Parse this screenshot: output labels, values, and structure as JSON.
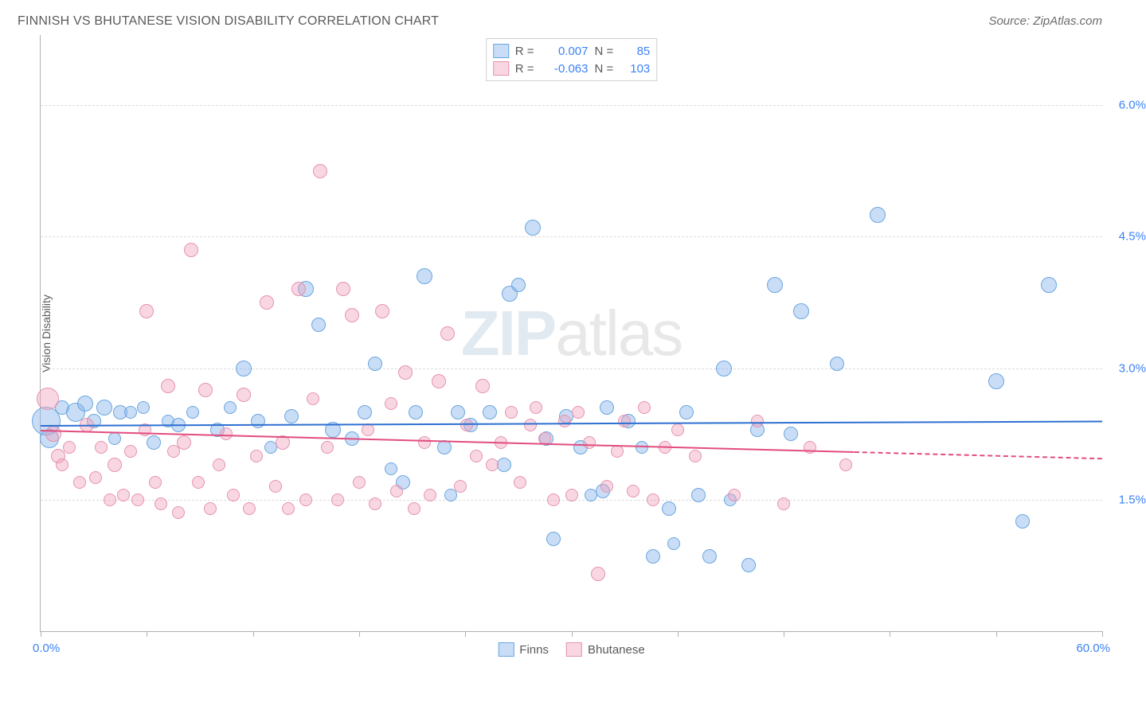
{
  "header": {
    "title": "FINNISH VS BHUTANESE VISION DISABILITY CORRELATION CHART",
    "source": "Source: ZipAtlas.com"
  },
  "watermark": {
    "bold": "ZIP",
    "thin": "atlas"
  },
  "chart": {
    "type": "scatter",
    "ylabel": "Vision Disability",
    "background_color": "#ffffff",
    "grid_color": "#dcdcdc",
    "axis_color": "#b0b0b0",
    "label_fontcolor": "#5a5a5a",
    "value_fontcolor": "#3b82f6",
    "xlim": [
      0,
      60
    ],
    "ylim": [
      0,
      6.8
    ],
    "xtick_positions": [
      0,
      6,
      12,
      18,
      24,
      30,
      36,
      42,
      48,
      54,
      60
    ],
    "xlabel_min": "0.0%",
    "xlabel_max": "60.0%",
    "ytick_positions": [
      1.5,
      3.0,
      4.5,
      6.0
    ],
    "ytick_labels": [
      "1.5%",
      "3.0%",
      "4.5%",
      "6.0%"
    ],
    "series": [
      {
        "name": "Finns",
        "fill_color": "rgba(135,180,235,0.45)",
        "stroke_color": "#6aa7e0",
        "trend_color": "#2e6fd1",
        "R": "0.007",
        "N": "85",
        "trend": {
          "x0": 0,
          "y0": 2.35,
          "x1": 60,
          "y1": 2.4,
          "solid_until_x": 60
        },
        "points": [
          {
            "x": 0.3,
            "y": 2.4,
            "r": 18
          },
          {
            "x": 0.5,
            "y": 2.2,
            "r": 12
          },
          {
            "x": 1.2,
            "y": 2.55,
            "r": 9
          },
          {
            "x": 2.0,
            "y": 2.5,
            "r": 12
          },
          {
            "x": 2.5,
            "y": 2.6,
            "r": 10
          },
          {
            "x": 3.0,
            "y": 2.4,
            "r": 9
          },
          {
            "x": 3.6,
            "y": 2.55,
            "r": 10
          },
          {
            "x": 4.5,
            "y": 2.5,
            "r": 9
          },
          {
            "x": 4.2,
            "y": 2.2,
            "r": 8
          },
          {
            "x": 5.1,
            "y": 2.5,
            "r": 8
          },
          {
            "x": 5.8,
            "y": 2.55,
            "r": 8
          },
          {
            "x": 6.4,
            "y": 2.15,
            "r": 9
          },
          {
            "x": 7.2,
            "y": 2.4,
            "r": 8
          },
          {
            "x": 7.8,
            "y": 2.35,
            "r": 9
          },
          {
            "x": 8.6,
            "y": 2.5,
            "r": 8
          },
          {
            "x": 10.0,
            "y": 2.3,
            "r": 9
          },
          {
            "x": 10.7,
            "y": 2.55,
            "r": 8
          },
          {
            "x": 11.5,
            "y": 3.0,
            "r": 10
          },
          {
            "x": 12.3,
            "y": 2.4,
            "r": 9
          },
          {
            "x": 13.0,
            "y": 2.1,
            "r": 8
          },
          {
            "x": 14.2,
            "y": 2.45,
            "r": 9
          },
          {
            "x": 15.0,
            "y": 3.9,
            "r": 10
          },
          {
            "x": 15.7,
            "y": 3.5,
            "r": 9
          },
          {
            "x": 16.5,
            "y": 2.3,
            "r": 10
          },
          {
            "x": 17.6,
            "y": 2.2,
            "r": 9
          },
          {
            "x": 18.3,
            "y": 2.5,
            "r": 9
          },
          {
            "x": 18.9,
            "y": 3.05,
            "r": 9
          },
          {
            "x": 19.8,
            "y": 1.85,
            "r": 8
          },
          {
            "x": 20.5,
            "y": 1.7,
            "r": 9
          },
          {
            "x": 21.2,
            "y": 2.5,
            "r": 9
          },
          {
            "x": 21.7,
            "y": 4.05,
            "r": 10
          },
          {
            "x": 22.8,
            "y": 2.1,
            "r": 9
          },
          {
            "x": 23.6,
            "y": 2.5,
            "r": 9
          },
          {
            "x": 23.2,
            "y": 1.55,
            "r": 8
          },
          {
            "x": 24.3,
            "y": 2.35,
            "r": 9
          },
          {
            "x": 25.4,
            "y": 2.5,
            "r": 9
          },
          {
            "x": 26.2,
            "y": 1.9,
            "r": 9
          },
          {
            "x": 26.5,
            "y": 3.85,
            "r": 10
          },
          {
            "x": 27.0,
            "y": 3.95,
            "r": 9
          },
          {
            "x": 27.8,
            "y": 4.6,
            "r": 10
          },
          {
            "x": 28.6,
            "y": 2.2,
            "r": 9
          },
          {
            "x": 29.0,
            "y": 1.05,
            "r": 9
          },
          {
            "x": 29.7,
            "y": 2.45,
            "r": 9
          },
          {
            "x": 30.5,
            "y": 2.1,
            "r": 9
          },
          {
            "x": 31.8,
            "y": 1.6,
            "r": 9
          },
          {
            "x": 32.0,
            "y": 2.55,
            "r": 9
          },
          {
            "x": 31.1,
            "y": 1.55,
            "r": 8
          },
          {
            "x": 33.2,
            "y": 2.4,
            "r": 9
          },
          {
            "x": 34.0,
            "y": 2.1,
            "r": 8
          },
          {
            "x": 34.6,
            "y": 0.85,
            "r": 9
          },
          {
            "x": 35.5,
            "y": 1.4,
            "r": 9
          },
          {
            "x": 35.8,
            "y": 1.0,
            "r": 8
          },
          {
            "x": 36.5,
            "y": 2.5,
            "r": 9
          },
          {
            "x": 37.2,
            "y": 1.55,
            "r": 9
          },
          {
            "x": 37.8,
            "y": 0.85,
            "r": 9
          },
          {
            "x": 38.6,
            "y": 3.0,
            "r": 10
          },
          {
            "x": 39.0,
            "y": 1.5,
            "r": 8
          },
          {
            "x": 40.0,
            "y": 0.75,
            "r": 9
          },
          {
            "x": 40.5,
            "y": 2.3,
            "r": 9
          },
          {
            "x": 41.5,
            "y": 3.95,
            "r": 10
          },
          {
            "x": 42.4,
            "y": 2.25,
            "r": 9
          },
          {
            "x": 43.0,
            "y": 3.65,
            "r": 10
          },
          {
            "x": 45.0,
            "y": 3.05,
            "r": 9
          },
          {
            "x": 47.3,
            "y": 4.75,
            "r": 10
          },
          {
            "x": 54.0,
            "y": 2.85,
            "r": 10
          },
          {
            "x": 55.5,
            "y": 1.25,
            "r": 9
          },
          {
            "x": 57.0,
            "y": 3.95,
            "r": 10
          }
        ]
      },
      {
        "name": "Bhutanese",
        "fill_color": "rgba(240,160,185,0.42)",
        "stroke_color": "#e593af",
        "trend_color": "#e24d7e",
        "R": "-0.063",
        "N": "103",
        "trend": {
          "x0": 0,
          "y0": 2.3,
          "x1": 60,
          "y1": 1.98,
          "solid_until_x": 46
        },
        "points": [
          {
            "x": 0.4,
            "y": 2.65,
            "r": 14
          },
          {
            "x": 0.7,
            "y": 2.25,
            "r": 10
          },
          {
            "x": 1.0,
            "y": 2.0,
            "r": 9
          },
          {
            "x": 1.6,
            "y": 2.1,
            "r": 8
          },
          {
            "x": 1.2,
            "y": 1.9,
            "r": 8
          },
          {
            "x": 2.2,
            "y": 1.7,
            "r": 8
          },
          {
            "x": 2.6,
            "y": 2.35,
            "r": 9
          },
          {
            "x": 3.1,
            "y": 1.75,
            "r": 8
          },
          {
            "x": 3.4,
            "y": 2.1,
            "r": 8
          },
          {
            "x": 3.9,
            "y": 1.5,
            "r": 8
          },
          {
            "x": 4.2,
            "y": 1.9,
            "r": 9
          },
          {
            "x": 4.7,
            "y": 1.55,
            "r": 8
          },
          {
            "x": 5.1,
            "y": 2.05,
            "r": 8
          },
          {
            "x": 5.5,
            "y": 1.5,
            "r": 8
          },
          {
            "x": 5.9,
            "y": 2.3,
            "r": 8
          },
          {
            "x": 6.0,
            "y": 3.65,
            "r": 9
          },
          {
            "x": 6.5,
            "y": 1.7,
            "r": 8
          },
          {
            "x": 6.8,
            "y": 1.45,
            "r": 8
          },
          {
            "x": 7.2,
            "y": 2.8,
            "r": 9
          },
          {
            "x": 7.5,
            "y": 2.05,
            "r": 8
          },
          {
            "x": 7.8,
            "y": 1.35,
            "r": 8
          },
          {
            "x": 8.1,
            "y": 2.15,
            "r": 9
          },
          {
            "x": 8.5,
            "y": 4.35,
            "r": 9
          },
          {
            "x": 8.9,
            "y": 1.7,
            "r": 8
          },
          {
            "x": 9.3,
            "y": 2.75,
            "r": 9
          },
          {
            "x": 9.6,
            "y": 1.4,
            "r": 8
          },
          {
            "x": 10.1,
            "y": 1.9,
            "r": 8
          },
          {
            "x": 10.5,
            "y": 2.25,
            "r": 8
          },
          {
            "x": 10.9,
            "y": 1.55,
            "r": 8
          },
          {
            "x": 11.5,
            "y": 2.7,
            "r": 9
          },
          {
            "x": 11.8,
            "y": 1.4,
            "r": 8
          },
          {
            "x": 12.2,
            "y": 2.0,
            "r": 8
          },
          {
            "x": 12.8,
            "y": 3.75,
            "r": 9
          },
          {
            "x": 13.3,
            "y": 1.65,
            "r": 8
          },
          {
            "x": 13.7,
            "y": 2.15,
            "r": 9
          },
          {
            "x": 14.0,
            "y": 1.4,
            "r": 8
          },
          {
            "x": 14.6,
            "y": 3.9,
            "r": 9
          },
          {
            "x": 15.0,
            "y": 1.5,
            "r": 8
          },
          {
            "x": 15.4,
            "y": 2.65,
            "r": 8
          },
          {
            "x": 15.8,
            "y": 5.25,
            "r": 9
          },
          {
            "x": 16.2,
            "y": 2.1,
            "r": 8
          },
          {
            "x": 16.8,
            "y": 1.5,
            "r": 8
          },
          {
            "x": 17.1,
            "y": 3.9,
            "r": 9
          },
          {
            "x": 17.6,
            "y": 3.6,
            "r": 9
          },
          {
            "x": 18.0,
            "y": 1.7,
            "r": 8
          },
          {
            "x": 18.5,
            "y": 2.3,
            "r": 8
          },
          {
            "x": 18.9,
            "y": 1.45,
            "r": 8
          },
          {
            "x": 19.3,
            "y": 3.65,
            "r": 9
          },
          {
            "x": 19.8,
            "y": 2.6,
            "r": 8
          },
          {
            "x": 20.1,
            "y": 1.6,
            "r": 8
          },
          {
            "x": 20.6,
            "y": 2.95,
            "r": 9
          },
          {
            "x": 21.1,
            "y": 1.4,
            "r": 8
          },
          {
            "x": 21.7,
            "y": 2.15,
            "r": 8
          },
          {
            "x": 22.0,
            "y": 1.55,
            "r": 8
          },
          {
            "x": 22.5,
            "y": 2.85,
            "r": 9
          },
          {
            "x": 23.0,
            "y": 3.4,
            "r": 9
          },
          {
            "x": 23.7,
            "y": 1.65,
            "r": 8
          },
          {
            "x": 24.1,
            "y": 2.35,
            "r": 8
          },
          {
            "x": 24.6,
            "y": 2.0,
            "r": 8
          },
          {
            "x": 25.0,
            "y": 2.8,
            "r": 9
          },
          {
            "x": 25.5,
            "y": 1.9,
            "r": 8
          },
          {
            "x": 26.0,
            "y": 2.15,
            "r": 8
          },
          {
            "x": 26.6,
            "y": 2.5,
            "r": 8
          },
          {
            "x": 27.1,
            "y": 1.7,
            "r": 8
          },
          {
            "x": 27.7,
            "y": 2.35,
            "r": 8
          },
          {
            "x": 28.0,
            "y": 2.55,
            "r": 8
          },
          {
            "x": 28.5,
            "y": 2.2,
            "r": 8
          },
          {
            "x": 29.0,
            "y": 1.5,
            "r": 8
          },
          {
            "x": 29.6,
            "y": 2.4,
            "r": 8
          },
          {
            "x": 30.0,
            "y": 1.55,
            "r": 8
          },
          {
            "x": 30.4,
            "y": 2.5,
            "r": 8
          },
          {
            "x": 31.0,
            "y": 2.15,
            "r": 8
          },
          {
            "x": 31.5,
            "y": 0.65,
            "r": 9
          },
          {
            "x": 32.0,
            "y": 1.65,
            "r": 8
          },
          {
            "x": 32.6,
            "y": 2.05,
            "r": 8
          },
          {
            "x": 33.0,
            "y": 2.4,
            "r": 8
          },
          {
            "x": 33.5,
            "y": 1.6,
            "r": 8
          },
          {
            "x": 34.1,
            "y": 2.55,
            "r": 8
          },
          {
            "x": 34.6,
            "y": 1.5,
            "r": 8
          },
          {
            "x": 35.3,
            "y": 2.1,
            "r": 8
          },
          {
            "x": 36.0,
            "y": 2.3,
            "r": 8
          },
          {
            "x": 37.0,
            "y": 2.0,
            "r": 8
          },
          {
            "x": 39.2,
            "y": 1.55,
            "r": 8
          },
          {
            "x": 40.5,
            "y": 2.4,
            "r": 8
          },
          {
            "x": 42.0,
            "y": 1.45,
            "r": 8
          },
          {
            "x": 43.5,
            "y": 2.1,
            "r": 8
          },
          {
            "x": 45.5,
            "y": 1.9,
            "r": 8
          }
        ]
      }
    ],
    "stat_legend_labels": {
      "R": "R =",
      "N": "N ="
    },
    "bottom_legend_labels": [
      "Finns",
      "Bhutanese"
    ]
  }
}
